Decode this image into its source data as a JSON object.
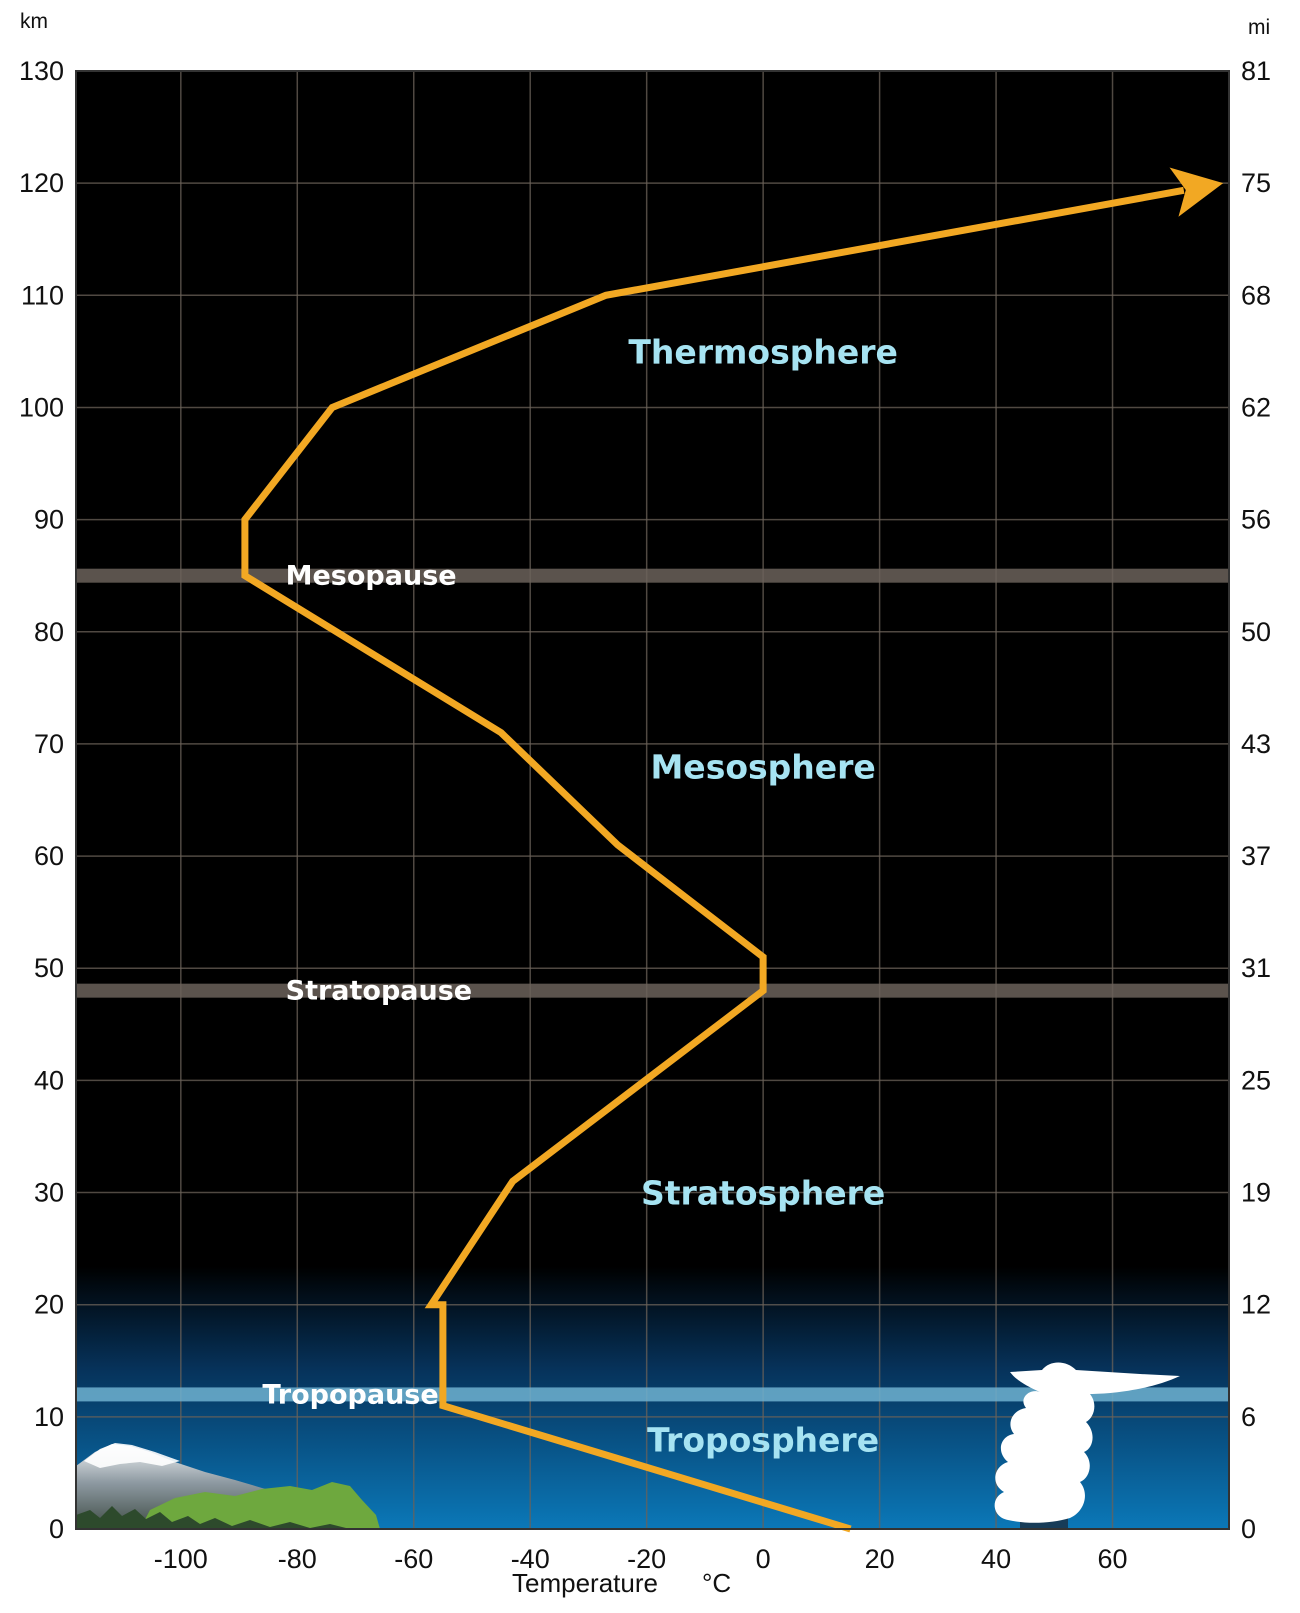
{
  "chart_data": {
    "type": "line",
    "title": "",
    "xlabel": "Temperature",
    "xunit": "°C",
    "ylabel_left_unit": "km",
    "ylabel_right_unit": "mi",
    "xlim": [
      -118,
      80
    ],
    "ylim": [
      0,
      130
    ],
    "x_ticks": [
      -100,
      -80,
      -60,
      -40,
      -20,
      0,
      20,
      40,
      60
    ],
    "y_ticks_km": [
      0,
      10,
      20,
      30,
      40,
      50,
      60,
      70,
      80,
      90,
      100,
      110,
      120,
      130
    ],
    "y_ticks_mi": [
      "0",
      "6",
      "12",
      "19",
      "25",
      "31",
      "37",
      "43",
      "50",
      "56",
      "62",
      "68",
      "75",
      "81"
    ],
    "grid": true,
    "series": [
      {
        "color": "#f2a823",
        "x": [
          15,
          -55,
          -55,
          -57,
          -43,
          0,
          0,
          -25,
          -45,
          -89,
          -89,
          -74,
          -27,
          79
        ],
        "y": [
          0,
          11,
          20,
          20,
          31,
          48,
          51,
          61,
          71,
          85,
          90,
          100,
          110,
          120
        ]
      }
    ],
    "layers": [
      {
        "label": "Thermosphere",
        "temp": 0,
        "altitude": 105
      },
      {
        "label": "Mesosphere",
        "temp": 0,
        "altitude": 68
      },
      {
        "label": "Stratosphere",
        "temp": 0,
        "altitude": 30
      },
      {
        "label": "Troposphere",
        "temp": 0,
        "altitude": 8
      }
    ],
    "boundaries": [
      {
        "label": "Mesopause",
        "altitude": 85,
        "label_temp": -82
      },
      {
        "label": "Stratopause",
        "altitude": 48,
        "label_temp": -82
      },
      {
        "label": "Tropopause",
        "altitude": 12,
        "label_temp": -86
      }
    ],
    "colors": {
      "background_upper": "#000000",
      "background_lower": "#0b78b8",
      "line": "#f2a823",
      "layer_label": "#a6e3f2",
      "boundary_band": "#6b625a",
      "tropopause_band": "#6fb2d0"
    }
  }
}
